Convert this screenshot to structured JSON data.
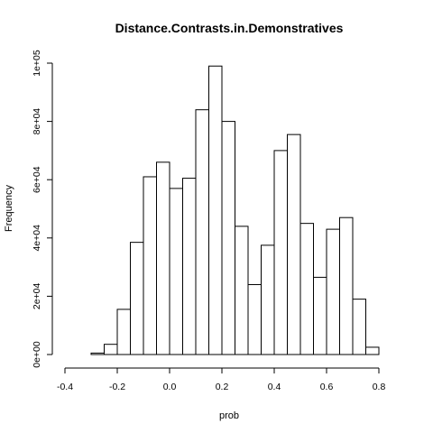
{
  "chart_data": {
    "type": "bar",
    "title": "Distance.Contrasts.in.Demonstratives",
    "xlabel": "prob",
    "ylabel": "Frequency",
    "bin_width": 0.05,
    "bin_start": -0.3,
    "xlim": [
      -0.4,
      0.8
    ],
    "ylim": [
      0,
      100000
    ],
    "x_ticks": [
      -0.4,
      -0.2,
      0.0,
      0.2,
      0.4,
      0.6,
      0.8
    ],
    "x_tick_labels": [
      "-0.4",
      "-0.2",
      "0.0",
      "0.2",
      "0.4",
      "0.6",
      "0.8"
    ],
    "y_ticks": [
      0,
      20000,
      40000,
      60000,
      80000,
      100000
    ],
    "y_tick_labels": [
      "0e+00",
      "2e+04",
      "4e+04",
      "6e+04",
      "8e+04",
      "1e+05"
    ],
    "values": [
      500,
      3500,
      15500,
      38500,
      61000,
      66000,
      57000,
      60500,
      84000,
      99000,
      80000,
      44000,
      24000,
      37500,
      70000,
      75500,
      45000,
      26500,
      43000,
      47000,
      19000,
      2500
    ],
    "bar_fill": "#ffffff",
    "bar_stroke": "#000000",
    "grid": false,
    "legend": "none"
  }
}
